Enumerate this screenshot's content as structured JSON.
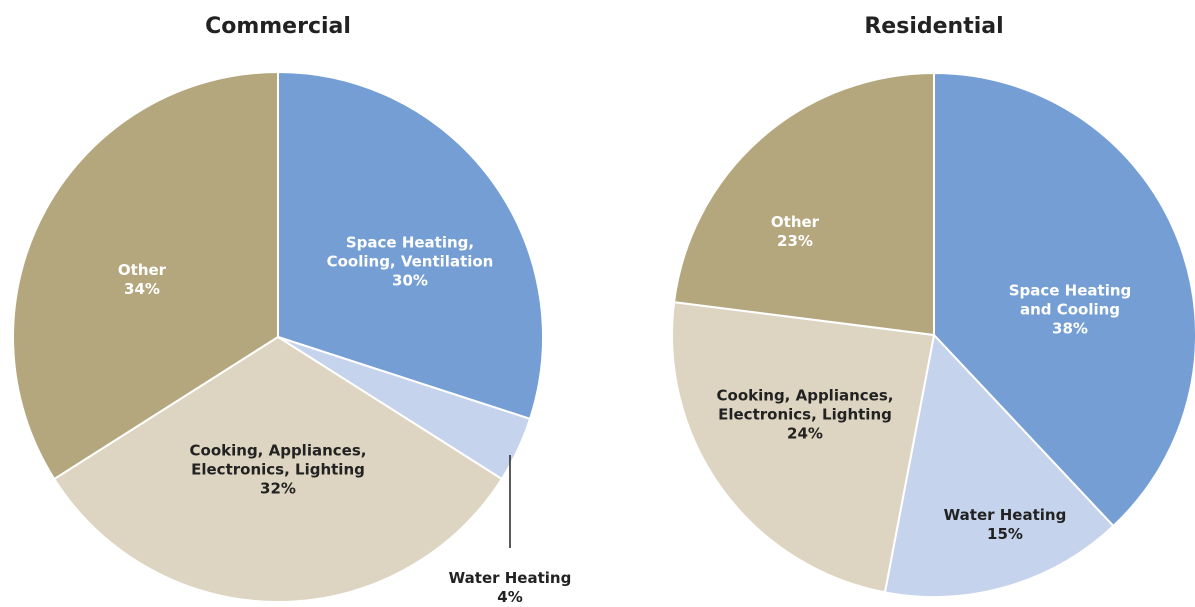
{
  "chart_data": [
    {
      "type": "pie",
      "title": "Commercial",
      "categories": [
        "Space Heating, Cooling, Ventilation",
        "Water Heating",
        "Cooking, Appliances, Electronics, Lighting",
        "Other"
      ],
      "values": [
        30,
        4,
        32,
        34
      ],
      "value_labels": [
        "30%",
        "4%",
        "32%",
        "34%"
      ],
      "colors": [
        "#759fd4",
        "#c5d3ec",
        "#ddd5c1",
        "#b5a77d"
      ]
    },
    {
      "type": "pie",
      "title": "Residential",
      "categories": [
        "Space Heating and Cooling",
        "Water Heating",
        "Cooking, Appliances, Electronics, Lighting",
        "Other"
      ],
      "values": [
        38,
        15,
        24,
        23
      ],
      "value_labels": [
        "38%",
        "15%",
        "24%",
        "23%"
      ],
      "colors": [
        "#759fd4",
        "#c5d3ec",
        "#ddd5c1",
        "#b5a77d"
      ]
    }
  ]
}
